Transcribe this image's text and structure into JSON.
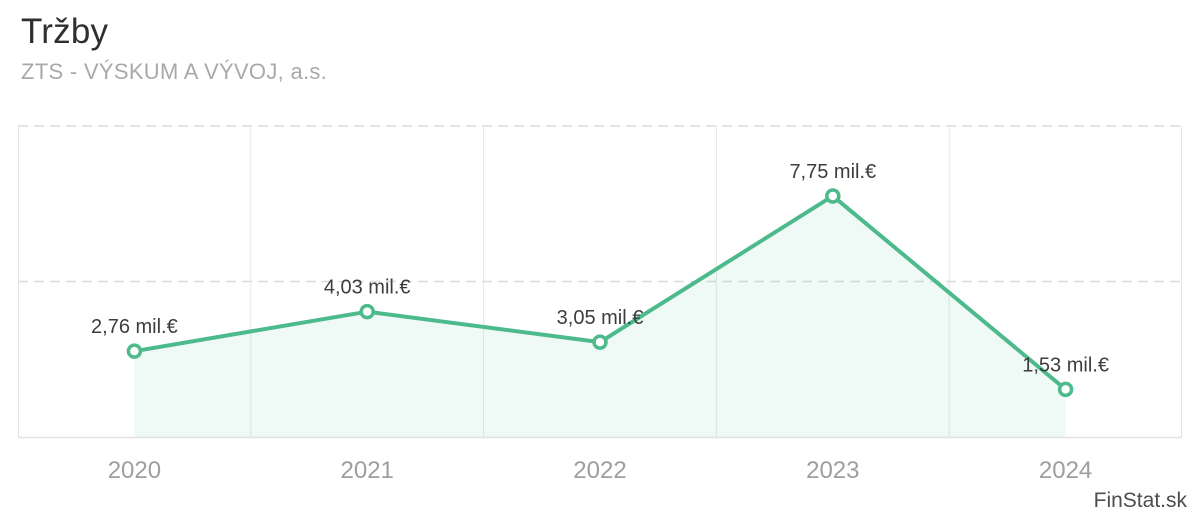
{
  "header": {
    "title": "Tržby",
    "subtitle": "ZTS - VÝSKUM A VÝVOJ, a.s."
  },
  "watermark": {
    "label": "FinStat.sk"
  },
  "colors": {
    "line": "#4dba8b",
    "area_fill": "rgba(77,186,139,0.09)",
    "marker_fill": "#ffffff",
    "grid_vertical": "#e7e7e7",
    "grid_dashed": "#dcdcdc",
    "plot_border": "#e2e2e2",
    "data_label": "#3d3d3d",
    "axis_label": "#9e9e9e"
  },
  "chart_data": {
    "type": "line",
    "title": "Tržby",
    "subtitle": "ZTS - VÝSKUM A VÝVOJ, a.s.",
    "categories": [
      "2020",
      "2021",
      "2022",
      "2023",
      "2024"
    ],
    "values": [
      2.76,
      4.03,
      3.05,
      7.75,
      1.53
    ],
    "point_labels": [
      "2,76 mil.€",
      "4,03 mil.€",
      "3,05 mil.€",
      "7,75 mil.€",
      "1,53 mil.€"
    ],
    "unit": "mil.€",
    "ylim": [
      0,
      10
    ],
    "y_gridlines": [
      5,
      10
    ],
    "grid": "horizontal dashed at 5 and 10; solid vertical band separators; no y-axis tick labels",
    "legend": false,
    "area": true,
    "marker": "open-circle"
  }
}
